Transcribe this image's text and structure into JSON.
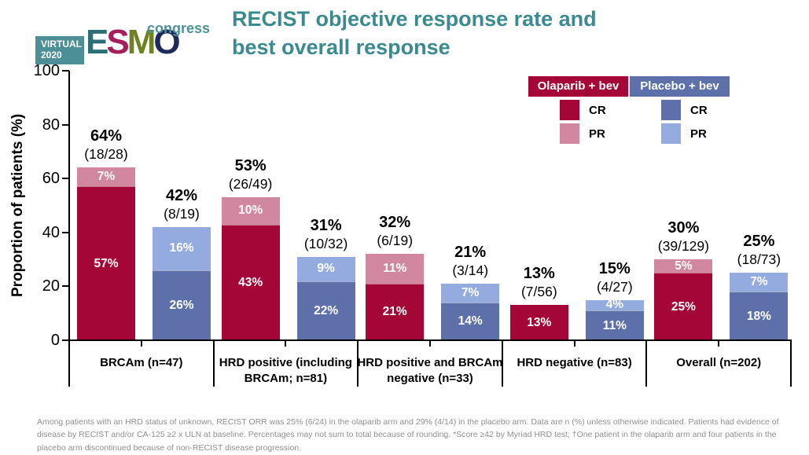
{
  "header": {
    "logo": {
      "virtual": "VIRTUAL",
      "year": "2020",
      "virtual_bg": "#4D8F96",
      "letters": [
        {
          "ch": "E",
          "color": "#2C6F76"
        },
        {
          "ch": "S",
          "color": "#A31E5A"
        },
        {
          "ch": "M",
          "color": "#6E8221"
        },
        {
          "ch": "O",
          "color": "#1E2A5A"
        }
      ],
      "congress": "congress",
      "congress_color": "#4D9299"
    },
    "title": "RECIST objective response rate and best overall response",
    "title_color": "#3A8A8E"
  },
  "y_axis": {
    "label": "Proportion of patients (%)",
    "ticks": [
      "0",
      "20",
      "40",
      "60",
      "80",
      "100"
    ]
  },
  "legend": {
    "arms": [
      {
        "header": "Olaparib + bev",
        "header_bg": "#A50638",
        "items": [
          {
            "label": "CR",
            "color": "#A50638"
          },
          {
            "label": "PR",
            "color": "#D0879F"
          }
        ]
      },
      {
        "header": "Placebo + bev",
        "header_bg": "#5D70A9",
        "items": [
          {
            "label": "CR",
            "color": "#5D70A9"
          },
          {
            "label": "PR",
            "color": "#93ABDE"
          }
        ]
      }
    ]
  },
  "chart_data": {
    "type": "bar",
    "stacked": true,
    "grouped": true,
    "title": "RECIST objective response rate and best overall response",
    "ylabel": "Proportion of patients (%)",
    "ylim": [
      0,
      100
    ],
    "grid": false,
    "legend_position": "top-right",
    "categories": [
      "BRCAm (n=47)",
      "HRD positive (including BRCAm; n=81)",
      "HRD positive and BRCAm negative (n=33)",
      "HRD negative (n=83)",
      "Overall (n=202)"
    ],
    "series": [
      {
        "name": "Olaparib + bev CR",
        "color": "#A50638",
        "values": [
          57,
          43,
          21,
          13,
          25
        ]
      },
      {
        "name": "Olaparib + bev PR",
        "color": "#D0879F",
        "values": [
          7,
          10,
          11,
          0,
          5
        ]
      },
      {
        "name": "Placebo + bev CR",
        "color": "#5D70A9",
        "values": [
          26,
          22,
          14,
          11,
          18
        ]
      },
      {
        "name": "Placebo + bev PR",
        "color": "#93ABDE",
        "values": [
          16,
          9,
          7,
          4,
          7
        ]
      }
    ],
    "colors": {
      "olaparib_cr": "#A50638",
      "olaparib_pr": "#D0879F",
      "placebo_cr": "#5D70A9",
      "placebo_pr": "#93ABDE"
    },
    "groups": [
      {
        "category": "BRCAm (n=47)",
        "bars": [
          {
            "arm": "olaparib",
            "orr": "64%",
            "fraction": "(18/28)",
            "cr": 57,
            "pr": 7,
            "cr_label": "57%",
            "pr_label": "7%"
          },
          {
            "arm": "placebo",
            "orr": "42%",
            "fraction": "(8/19)",
            "cr": 26,
            "pr": 16,
            "cr_label": "26%",
            "pr_label": "16%"
          }
        ]
      },
      {
        "category": "HRD positive (including BRCAm; n=81)",
        "bars": [
          {
            "arm": "olaparib",
            "orr": "53%",
            "fraction": "(26/49)",
            "cr": 43,
            "pr": 10,
            "cr_label": "43%",
            "pr_label": "10%"
          },
          {
            "arm": "placebo",
            "orr": "31%",
            "fraction": "(10/32)",
            "cr": 22,
            "pr": 9,
            "cr_label": "22%",
            "pr_label": "9%"
          }
        ]
      },
      {
        "category": "HRD positive and BRCAm negative (n=33)",
        "bars": [
          {
            "arm": "olaparib",
            "orr": "32%",
            "fraction": "(6/19)",
            "cr": 21,
            "pr": 11,
            "cr_label": "21%",
            "pr_label": "11%"
          },
          {
            "arm": "placebo",
            "orr": "21%",
            "fraction": "(3/14)",
            "cr": 14,
            "pr": 7,
            "cr_label": "14%",
            "pr_label": "7%"
          }
        ]
      },
      {
        "category": "HRD negative (n=83)",
        "bars": [
          {
            "arm": "olaparib",
            "orr": "13%",
            "fraction": "(7/56)",
            "cr": 13,
            "pr": 0,
            "cr_label": "13%",
            "pr_label": ""
          },
          {
            "arm": "placebo",
            "orr": "15%",
            "fraction": "(4/27)",
            "cr": 11,
            "pr": 4,
            "cr_label": "11%",
            "pr_label": "4%"
          }
        ]
      },
      {
        "category": "Overall (n=202)",
        "bars": [
          {
            "arm": "olaparib",
            "orr": "30%",
            "fraction": "(39/129)",
            "cr": 25,
            "pr": 5,
            "cr_label": "25%",
            "pr_label": "5%"
          },
          {
            "arm": "placebo",
            "orr": "25%",
            "fraction": "(18/73)",
            "cr": 18,
            "pr": 7,
            "cr_label": "18%",
            "pr_label": "7%"
          }
        ]
      }
    ]
  },
  "footnote": "Among patients with an HRD status of unknown, RECIST ORR was 25% (6/24) in the olaparib arm and 29% (4/14) in the placebo arm. Data are n (%) unless otherwise indicated. Patients had evidence of disease by RECIST and/or CA-125 ≥2 x ULN at baseline. Percentages may not sum to total because of rounding. *Score ≥42 by Myriad HRD test; †One patient in the olaparib arm and four patients in the placebo arm discontinued because of non-RECIST disease progression."
}
